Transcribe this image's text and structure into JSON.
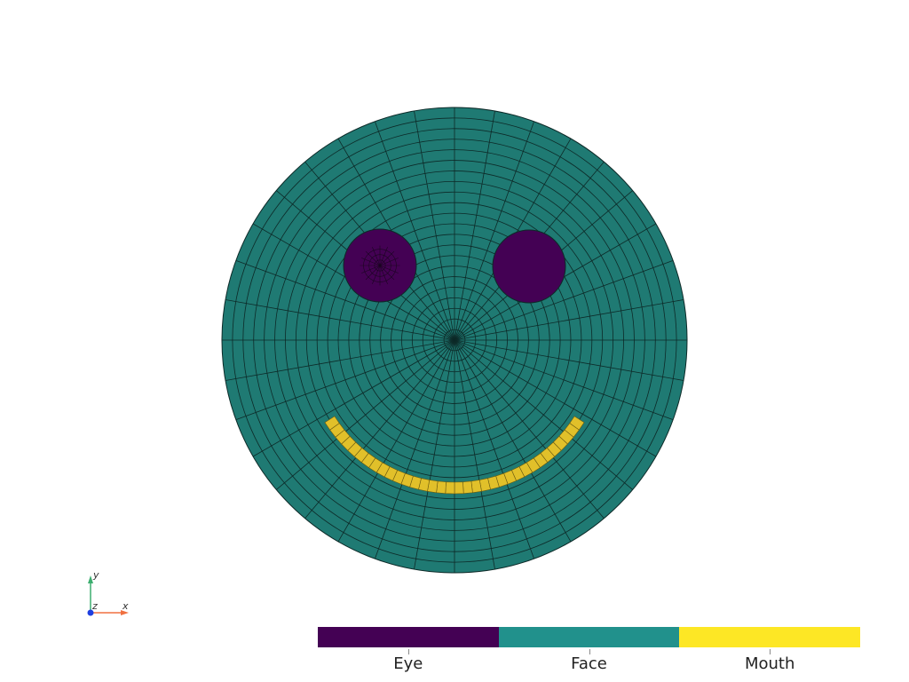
{
  "colors": {
    "background": "#ffffff",
    "eye": "#440154",
    "face": "#1f7a73",
    "mouth": "#e1c02a",
    "mesh_lines": "#0d2a28",
    "axis_x": "#f07040",
    "axis_y": "#3cae6f",
    "axis_z": "#1f3fe0"
  },
  "scalar_bar": {
    "categories": [
      {
        "label": "Eye",
        "color": "#440154"
      },
      {
        "label": "Face",
        "color": "#21918c"
      },
      {
        "label": "Mouth",
        "color": "#fde725"
      }
    ]
  },
  "orientation_axes": {
    "x_label": "x",
    "y_label": "y",
    "z_label": "z"
  },
  "mesh": {
    "regions": [
      "Face",
      "Eye",
      "Eye",
      "Mouth"
    ],
    "rings": 22,
    "spokes": 36
  }
}
